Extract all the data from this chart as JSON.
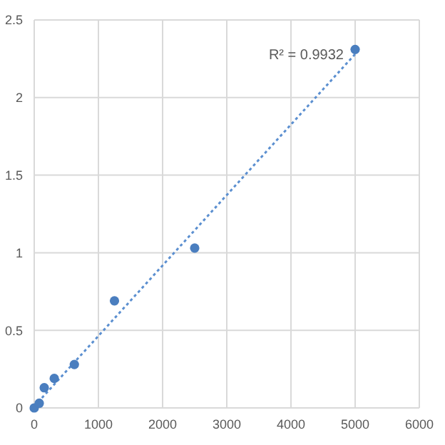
{
  "chart_data": {
    "type": "scatter",
    "x": [
      0,
      78,
      156,
      312,
      625,
      1250,
      2500,
      5000
    ],
    "xlim": [
      0,
      6000
    ],
    "xticks": [
      0,
      1000,
      2000,
      3000,
      4000,
      5000,
      6000
    ],
    "ylim": [
      0,
      2.5
    ],
    "yticks": [
      0,
      0.5,
      1,
      1.5,
      2,
      2.5
    ],
    "grid": true,
    "marker": "circle",
    "series": [
      {
        "color": "#4a7ebf",
        "values": [
          0,
          0.03,
          0.13,
          0.19,
          0.28,
          0.69,
          1.03,
          2.31
        ]
      },
      {
        "type": "line",
        "color": "#5b8fd0",
        "x": [
          0,
          5000
        ],
        "values": [
          0.01,
          2.28
        ],
        "line_style": "dotted",
        "marker": "none"
      }
    ],
    "annotations": [
      {
        "text": "R² = 0.9932",
        "x": 5000,
        "y": 2.28
      }
    ]
  }
}
